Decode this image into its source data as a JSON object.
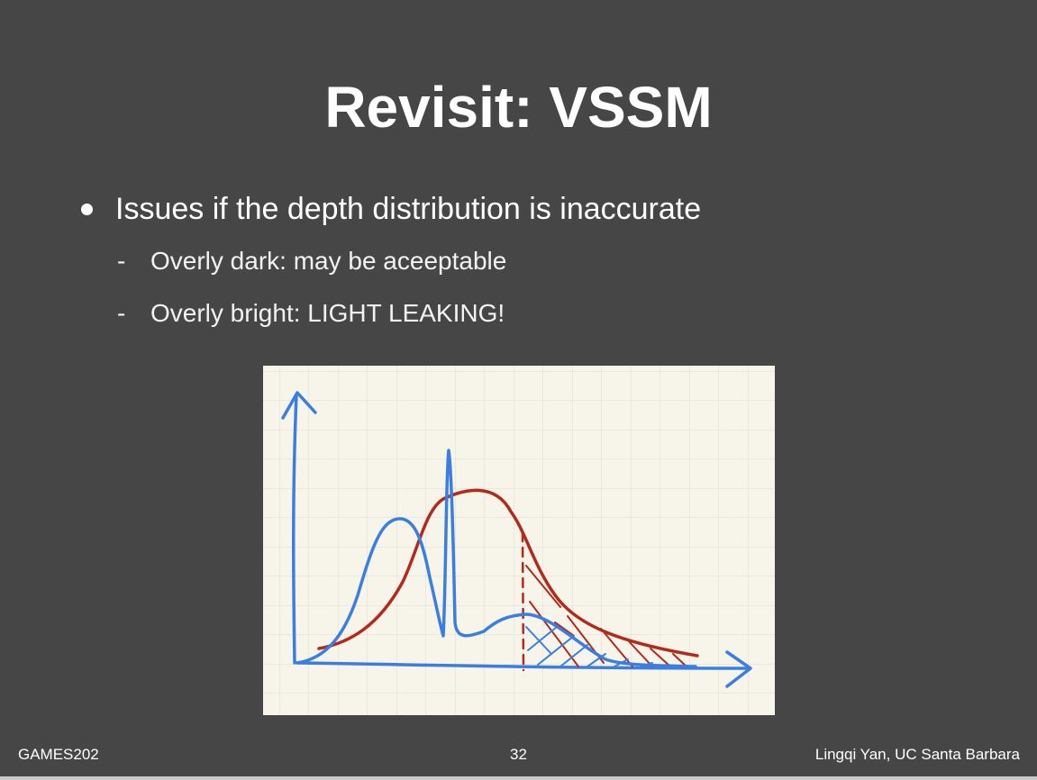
{
  "slide": {
    "title": "Revisit: VSSM",
    "bullets": [
      {
        "text": "Issues if the depth distribution is inaccurate",
        "sub": [
          "Overly dark: may be aceeptable",
          "Overly bright: LIGHT LEAKING!"
        ]
      }
    ],
    "sub_marker": "-"
  },
  "figure": {
    "description_icon": "hand-drawn-depth-distribution-sketch",
    "colors": {
      "paper": "#f7f4ea",
      "grid": "#dcdcd6",
      "blue": "#3a7fe0",
      "red": "#b22a1c"
    }
  },
  "footer": {
    "left": "GAMES202",
    "page": "32",
    "right": "Lingqi Yan, UC Santa Barbara"
  }
}
